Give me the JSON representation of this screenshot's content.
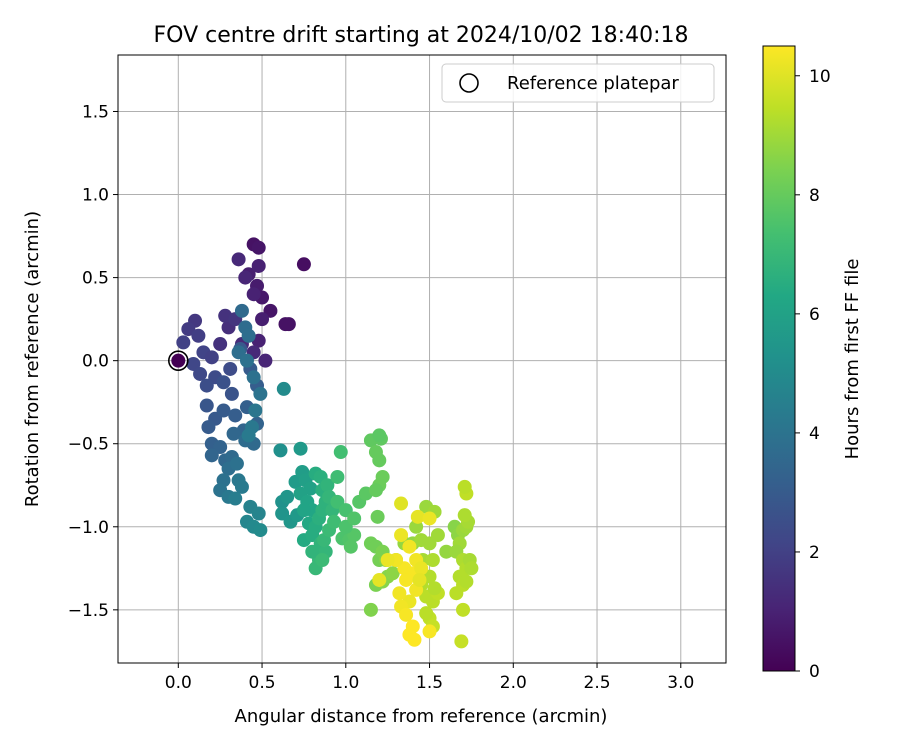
{
  "chart_data": {
    "type": "scatter",
    "title": "FOV centre drift starting at 2024/10/02 18:40:18",
    "xlabel": "Angular distance from reference (arcmin)",
    "ylabel": "Rotation from reference (arcmin)",
    "xlim": [
      -0.36,
      3.27
    ],
    "ylim": [
      -1.82,
      1.84
    ],
    "x_ticks": [
      0.0,
      0.5,
      1.0,
      1.5,
      2.0,
      2.5,
      3.0
    ],
    "x_tick_labels": [
      "0.0",
      "0.5",
      "1.0",
      "1.5",
      "2.0",
      "2.5",
      "3.0"
    ],
    "y_ticks": [
      -1.5,
      -1.0,
      -0.5,
      0.0,
      0.5,
      1.0,
      1.5
    ],
    "y_tick_labels": [
      "−1.5",
      "−1.0",
      "−0.5",
      "0.0",
      "0.5",
      "1.0",
      "1.5"
    ],
    "grid": true,
    "colormap": "viridis",
    "colorbar": {
      "label": "Hours from first FF file",
      "range": [
        0,
        10.5
      ],
      "ticks": [
        0,
        2,
        4,
        6,
        8,
        10
      ],
      "tick_labels": [
        "0",
        "2",
        "4",
        "6",
        "8",
        "10"
      ]
    },
    "legend": {
      "position": "top-right",
      "entries": [
        "Reference platepar"
      ]
    },
    "reference_point": {
      "x": 0.0,
      "y": 0.0
    },
    "series": [
      {
        "points": [
          [
            0.75,
            0.58,
            0.4
          ],
          [
            0.45,
            0.7,
            0.5
          ],
          [
            0.48,
            0.68,
            0.6
          ],
          [
            0.66,
            0.22,
            0.5
          ],
          [
            0.64,
            0.22,
            0.5
          ],
          [
            0.55,
            0.3,
            0.6
          ],
          [
            0.5,
            0.38,
            0.7
          ],
          [
            0.47,
            0.45,
            0.8
          ],
          [
            0.42,
            0.52,
            0.9
          ],
          [
            0.48,
            0.57,
            1.0
          ],
          [
            0.36,
            0.61,
            1.2
          ],
          [
            0.4,
            0.5,
            1.1
          ],
          [
            0.45,
            0.4,
            1.0
          ],
          [
            0.5,
            0.25,
            0.9
          ],
          [
            0.48,
            0.12,
            1.0
          ],
          [
            0.52,
            0.0,
            1.1
          ],
          [
            0.45,
            0.05,
            1.2
          ],
          [
            0.38,
            0.1,
            1.3
          ],
          [
            0.3,
            0.2,
            1.4
          ],
          [
            0.25,
            0.1,
            1.5
          ],
          [
            0.28,
            0.27,
            1.5
          ],
          [
            0.34,
            0.25,
            1.6
          ],
          [
            0.1,
            0.24,
            1.7
          ],
          [
            0.06,
            0.19,
            1.8
          ],
          [
            0.12,
            0.15,
            1.9
          ],
          [
            0.03,
            0.11,
            2.0
          ],
          [
            0.15,
            0.05,
            2.1
          ],
          [
            0.2,
            0.02,
            2.0
          ],
          [
            0.09,
            -0.02,
            2.2
          ],
          [
            0.13,
            -0.08,
            2.3
          ],
          [
            0.22,
            -0.1,
            2.4
          ],
          [
            0.17,
            -0.15,
            2.5
          ],
          [
            0.31,
            -0.05,
            2.4
          ],
          [
            0.27,
            -0.13,
            2.6
          ],
          [
            0.32,
            -0.2,
            2.7
          ],
          [
            0.17,
            -0.27,
            2.8
          ],
          [
            0.22,
            -0.35,
            2.9
          ],
          [
            0.27,
            -0.3,
            3.0
          ],
          [
            0.34,
            -0.33,
            3.1
          ],
          [
            0.37,
            0.07,
            2.9
          ],
          [
            0.43,
            -0.05,
            3.0
          ],
          [
            0.47,
            -0.15,
            3.1
          ],
          [
            0.41,
            -0.28,
            3.2
          ],
          [
            0.47,
            -0.38,
            3.3
          ],
          [
            0.39,
            -0.42,
            3.4
          ],
          [
            0.33,
            -0.44,
            3.5
          ],
          [
            0.45,
            -0.5,
            3.6
          ],
          [
            0.4,
            -0.48,
            3.7
          ],
          [
            0.18,
            -0.4,
            3.0
          ],
          [
            0.2,
            -0.5,
            3.2
          ],
          [
            0.25,
            -0.52,
            3.3
          ],
          [
            0.28,
            -0.6,
            3.5
          ],
          [
            0.32,
            -0.58,
            3.6
          ],
          [
            0.2,
            -0.57,
            3.4
          ],
          [
            0.3,
            -0.65,
            3.8
          ],
          [
            0.35,
            -0.62,
            3.9
          ],
          [
            0.27,
            -0.72,
            3.9
          ],
          [
            0.25,
            -0.78,
            4.0
          ],
          [
            0.36,
            -0.72,
            4.2
          ],
          [
            0.38,
            -0.76,
            4.3
          ],
          [
            0.3,
            -0.82,
            4.2
          ],
          [
            0.34,
            -0.83,
            4.4
          ],
          [
            0.43,
            -0.88,
            4.6
          ],
          [
            0.48,
            -0.92,
            4.7
          ],
          [
            0.41,
            -0.97,
            4.8
          ],
          [
            0.45,
            -1.0,
            4.9
          ],
          [
            0.49,
            -1.02,
            5.0
          ],
          [
            0.38,
            0.3,
            3.6
          ],
          [
            0.4,
            0.2,
            3.7
          ],
          [
            0.42,
            0.15,
            3.8
          ],
          [
            0.36,
            0.05,
            3.8
          ],
          [
            0.41,
            0.0,
            3.9
          ],
          [
            0.45,
            -0.1,
            3.9
          ],
          [
            0.49,
            -0.2,
            4.0
          ],
          [
            0.46,
            -0.3,
            4.1
          ],
          [
            0.44,
            -0.4,
            4.2
          ],
          [
            0.42,
            -0.45,
            4.3
          ],
          [
            0.63,
            -0.17,
            5.0
          ],
          [
            0.61,
            -0.54,
            5.2
          ],
          [
            0.62,
            -0.85,
            5.3
          ],
          [
            0.62,
            -0.92,
            5.4
          ],
          [
            0.65,
            -0.82,
            5.5
          ],
          [
            0.67,
            -0.97,
            5.5
          ],
          [
            0.71,
            -0.93,
            5.6
          ],
          [
            0.7,
            -0.73,
            5.7
          ],
          [
            0.73,
            -0.53,
            5.6
          ],
          [
            0.74,
            -0.67,
            5.8
          ],
          [
            0.76,
            -0.72,
            5.9
          ],
          [
            0.79,
            -0.77,
            6.0
          ],
          [
            0.73,
            -0.8,
            6.0
          ],
          [
            0.77,
            -0.85,
            6.1
          ],
          [
            0.8,
            -0.9,
            6.2
          ],
          [
            0.75,
            -0.9,
            6.1
          ],
          [
            0.78,
            -0.98,
            6.3
          ],
          [
            0.75,
            -1.08,
            6.4
          ],
          [
            0.8,
            -1.05,
            6.5
          ],
          [
            0.82,
            -1.0,
            6.5
          ],
          [
            0.84,
            -0.95,
            6.6
          ],
          [
            0.86,
            -0.9,
            6.7
          ],
          [
            0.88,
            -0.85,
            6.7
          ],
          [
            0.86,
            -0.78,
            6.6
          ],
          [
            0.82,
            -0.68,
            6.5
          ],
          [
            0.85,
            -0.7,
            6.6
          ],
          [
            0.89,
            -0.75,
            6.8
          ],
          [
            0.9,
            -0.82,
            6.9
          ],
          [
            0.92,
            -0.9,
            6.9
          ],
          [
            0.85,
            -1.1,
            6.8
          ],
          [
            0.88,
            -1.15,
            6.9
          ],
          [
            0.84,
            -1.2,
            7.0
          ],
          [
            0.82,
            -1.25,
            7.0
          ],
          [
            0.87,
            -1.08,
            7.0
          ],
          [
            0.9,
            -1.02,
            7.1
          ],
          [
            0.93,
            -0.97,
            7.2
          ],
          [
            0.8,
            -1.15,
            6.8
          ],
          [
            0.86,
            -1.2,
            7.1
          ],
          [
            0.97,
            -0.55,
            7.3
          ],
          [
            0.95,
            -0.7,
            7.2
          ],
          [
            0.95,
            -0.85,
            7.3
          ],
          [
            1.0,
            -0.9,
            7.4
          ],
          [
            0.98,
            -1.07,
            7.5
          ],
          [
            1.02,
            -1.08,
            7.6
          ],
          [
            1.03,
            -1.12,
            7.7
          ],
          [
            1.05,
            -1.05,
            7.7
          ],
          [
            1.0,
            -1.0,
            7.5
          ],
          [
            1.05,
            -0.95,
            7.6
          ],
          [
            1.08,
            -0.85,
            7.7
          ],
          [
            1.12,
            -0.8,
            7.8
          ],
          [
            1.15,
            -0.48,
            7.9
          ],
          [
            1.21,
            -0.47,
            7.9
          ],
          [
            1.2,
            -0.45,
            7.8
          ],
          [
            1.18,
            -0.55,
            8.0
          ],
          [
            1.2,
            -0.6,
            8.0
          ],
          [
            1.22,
            -0.7,
            8.1
          ],
          [
            1.2,
            -0.75,
            8.1
          ],
          [
            1.18,
            -0.78,
            8.0
          ],
          [
            1.19,
            -0.94,
            8.1
          ],
          [
            1.15,
            -1.1,
            8.2
          ],
          [
            1.18,
            -1.12,
            8.2
          ],
          [
            1.2,
            -1.2,
            8.3
          ],
          [
            1.22,
            -1.15,
            8.4
          ],
          [
            1.18,
            -1.35,
            8.4
          ],
          [
            1.15,
            -1.5,
            8.5
          ],
          [
            1.22,
            -1.33,
            8.6
          ],
          [
            1.25,
            -1.3,
            8.6
          ],
          [
            1.28,
            -1.28,
            8.7
          ],
          [
            1.24,
            -1.2,
            8.5
          ],
          [
            1.3,
            -1.2,
            8.7
          ],
          [
            1.35,
            -1.1,
            8.8
          ],
          [
            1.4,
            -1.1,
            8.8
          ],
          [
            1.42,
            -1.0,
            8.9
          ],
          [
            1.45,
            -1.08,
            9.0
          ],
          [
            1.5,
            -1.1,
            9.0
          ],
          [
            1.48,
            -0.88,
            8.9
          ],
          [
            1.53,
            -0.91,
            9.0
          ],
          [
            1.46,
            -1.2,
            9.1
          ],
          [
            1.52,
            -1.2,
            9.2
          ],
          [
            1.5,
            -1.3,
            9.3
          ],
          [
            1.45,
            -1.35,
            9.3
          ],
          [
            1.48,
            -1.42,
            9.4
          ],
          [
            1.52,
            -1.45,
            9.4
          ],
          [
            1.55,
            -1.4,
            9.5
          ],
          [
            1.5,
            -1.55,
            9.5
          ],
          [
            1.52,
            -1.6,
            9.6
          ],
          [
            1.48,
            -1.52,
            9.4
          ],
          [
            1.53,
            -1.37,
            9.3
          ],
          [
            1.55,
            -1.05,
            9.0
          ],
          [
            1.6,
            -1.15,
            8.8
          ],
          [
            1.65,
            -1.0,
            8.6
          ],
          [
            1.67,
            -1.05,
            8.7
          ],
          [
            1.7,
            -1.02,
            8.9
          ],
          [
            1.72,
            -1.0,
            9.0
          ],
          [
            1.73,
            -0.97,
            9.1
          ],
          [
            1.71,
            -0.93,
            9.2
          ],
          [
            1.68,
            -1.1,
            9.0
          ],
          [
            1.66,
            -1.15,
            8.9
          ],
          [
            1.7,
            -1.2,
            9.2
          ],
          [
            1.72,
            -1.25,
            9.3
          ],
          [
            1.74,
            -1.2,
            9.1
          ],
          [
            1.75,
            -1.25,
            9.2
          ],
          [
            1.68,
            -1.3,
            9.3
          ],
          [
            1.7,
            -1.35,
            9.4
          ],
          [
            1.72,
            -1.33,
            9.3
          ],
          [
            1.66,
            -1.4,
            9.4
          ],
          [
            1.7,
            -1.5,
            9.5
          ],
          [
            1.69,
            -1.69,
            9.6
          ],
          [
            1.72,
            -0.8,
            9.5
          ],
          [
            1.71,
            -0.76,
            9.4
          ],
          [
            1.33,
            -0.86,
            10.0
          ],
          [
            1.43,
            -0.94,
            10.1
          ],
          [
            1.5,
            -0.95,
            10.2
          ],
          [
            1.33,
            -1.05,
            10.2
          ],
          [
            1.38,
            -1.12,
            10.3
          ],
          [
            1.42,
            -1.2,
            10.3
          ],
          [
            1.35,
            -1.25,
            10.4
          ],
          [
            1.4,
            -1.28,
            10.4
          ],
          [
            1.36,
            -1.32,
            10.4
          ],
          [
            1.42,
            -1.38,
            10.3
          ],
          [
            1.38,
            -1.45,
            10.2
          ],
          [
            1.33,
            -1.48,
            10.3
          ],
          [
            1.36,
            -1.53,
            10.4
          ],
          [
            1.4,
            -1.6,
            10.5
          ],
          [
            1.38,
            -1.65,
            10.5
          ],
          [
            1.41,
            -1.68,
            10.5
          ],
          [
            1.5,
            -1.63,
            10.4
          ],
          [
            1.3,
            -1.2,
            10.3
          ],
          [
            1.25,
            -1.2,
            10.2
          ],
          [
            1.2,
            -1.32,
            10.1
          ],
          [
            1.45,
            -1.25,
            10.2
          ],
          [
            1.44,
            -1.32,
            10.1
          ],
          [
            1.32,
            -1.4,
            10.3
          ]
        ]
      }
    ]
  }
}
